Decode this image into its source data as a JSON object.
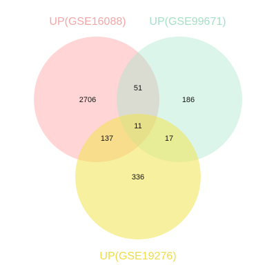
{
  "sets": [
    {
      "id": "a",
      "label": "UP(GSE16088)",
      "fill": "#ff9a9a",
      "label_color": "#f4a6a6"
    },
    {
      "id": "b",
      "label": "UP(GSE99671)",
      "fill": "#a9e8cc",
      "label_color": "#a6e0c6"
    },
    {
      "id": "c",
      "label": "UP(GSE19276)",
      "fill": "#f0e350",
      "label_color": "#eedc4a"
    }
  ],
  "regions": {
    "a_only": "2706",
    "b_only": "186",
    "c_only": "336",
    "ab": "51",
    "ac": "137",
    "bc": "17",
    "abc": "11"
  }
}
